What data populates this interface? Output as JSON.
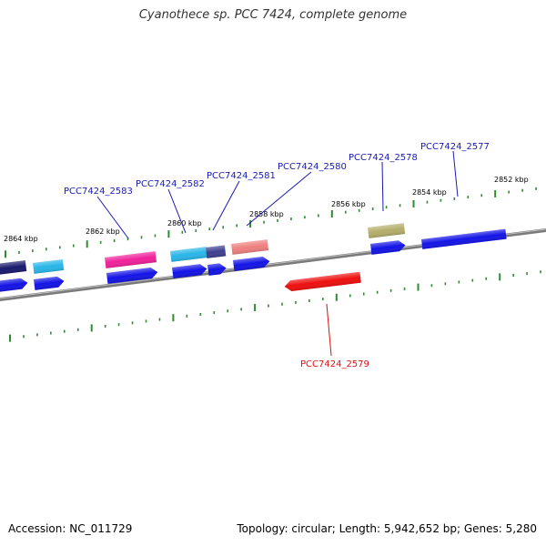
{
  "header": {
    "title": "Cyanothece sp. PCC 7424, complete genome"
  },
  "footer": {
    "accession": "Accession: NC_011729",
    "summary": "Topology: circular; Length: 5,942,652 bp; Genes: 5,280"
  },
  "colors": {
    "backbone": "#7a7a7a",
    "ticks": "#2e8b2e",
    "label_forward": "#1a1ab4",
    "label_reverse": "#dd1111"
  },
  "scale": {
    "labels": [
      {
        "text": "2864 kbp"
      },
      {
        "text": "2862 kbp"
      },
      {
        "text": "2860 kbp"
      },
      {
        "text": "2858 kbp"
      },
      {
        "text": "2856 kbp"
      },
      {
        "text": "2854 kbp"
      },
      {
        "text": "2852 kbp"
      }
    ]
  },
  "gene_labels": [
    {
      "text": "PCC7424_2583",
      "strand": "forward"
    },
    {
      "text": "PCC7424_2582",
      "strand": "forward"
    },
    {
      "text": "PCC7424_2581",
      "strand": "forward"
    },
    {
      "text": "PCC7424_2580",
      "strand": "forward"
    },
    {
      "text": "PCC7424_2578",
      "strand": "forward"
    },
    {
      "text": "PCC7424_2577",
      "strand": "forward"
    },
    {
      "text": "PCC7424_2579",
      "strand": "reverse"
    }
  ],
  "features": [
    {
      "name": "feature-navy-edge",
      "color": "#1a1a6e"
    },
    {
      "name": "feature-cyan-1",
      "color": "#29b6e8"
    },
    {
      "name": "feature-magenta",
      "color": "#f0219a"
    },
    {
      "name": "feature-cyan-2",
      "color": "#29b6e8"
    },
    {
      "name": "feature-slate",
      "color": "#3f3f8f"
    },
    {
      "name": "feature-salmon",
      "color": "#ee8080"
    },
    {
      "name": "feature-olive",
      "color": "#b3ad6a"
    },
    {
      "name": "feature-blue-long",
      "color": "#1414e6"
    },
    {
      "name": "feature-red",
      "color": "#ee0f0f"
    },
    {
      "name": "cds-arrow",
      "color": "#1414e6"
    }
  ]
}
